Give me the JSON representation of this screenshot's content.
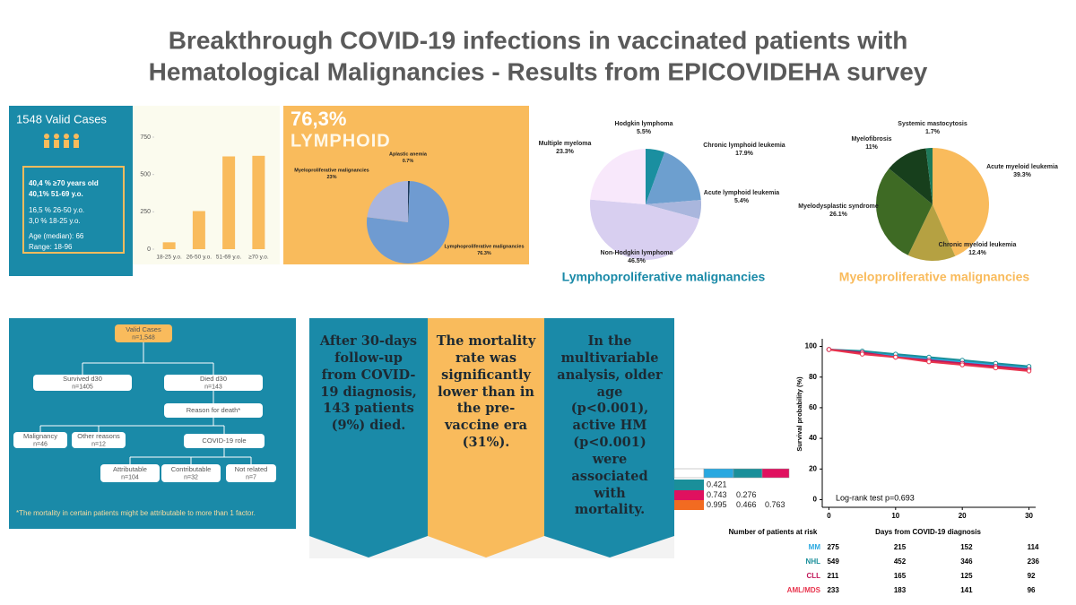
{
  "title": [
    "Breakthrough COVID-19 infections in vaccinated patients with",
    "Hematological Malignancies - Results from EPICOVIDEHA survey"
  ],
  "cases_panel": {
    "heading": "1548 Valid Cases",
    "lines": [
      "40,4 % ≥70 years old",
      "40,1% 51-69 y.o.",
      "16,5 % 26-50 y.o.",
      "3,0 % 18-25 y.o.",
      "Age (median): 66",
      "Range: 18-96"
    ]
  },
  "chart_data": [
    {
      "type": "bar",
      "categories": [
        "18-25 y.o.",
        "26-50 y.o.",
        "51-69 y.o.",
        "≥70 y.o."
      ],
      "values": [
        46,
        255,
        621,
        625
      ],
      "color": "#f9bb5c",
      "ylim": [
        0,
        750
      ],
      "yticks": [
        0,
        250,
        500,
        750
      ]
    },
    {
      "type": "pie",
      "title": "76,3%",
      "subtitle": "LYMPHOID",
      "categories": [
        "Aplastic anemia",
        "Lymphoproliferative malignancies",
        "Myeloproliferative malignancies"
      ],
      "values": [
        0.7,
        76.3,
        23
      ],
      "value_labels": [
        "0.7%",
        "76.3%",
        "23%"
      ],
      "colors": [
        "#1d3a5c",
        "#6f9bd1",
        "#aab5de"
      ]
    },
    {
      "type": "pie",
      "title": "Lymphoproliferative malignancies",
      "categories": [
        "Hodgkin lymphoma",
        "Chronic lymphoid leukemia",
        "Acute lymphoid leukemia",
        "Non-Hodgkin lymphoma",
        "Multiple myeloma"
      ],
      "values": [
        5.5,
        17.9,
        5.4,
        46.5,
        23.3
      ],
      "value_labels": [
        "5.5%",
        "17.9%",
        "5.4%",
        "46.5%",
        "23.3%"
      ],
      "colors": [
        "#1a8fa0",
        "#6d9fcf",
        "#a9b6dd",
        "#d8cff0",
        "#f8e8fb"
      ]
    },
    {
      "type": "pie",
      "title": "Myeloproliferative malignancies",
      "categories": [
        "Acute myeloid leukemia",
        "Chronic myeloid leukemia",
        "Myelodysplastic syndrome",
        "Myelofibrosis",
        "Systemic mastocytosis"
      ],
      "values": [
        39.3,
        12.4,
        26.1,
        11,
        1.7
      ],
      "value_labels": [
        "39.3%",
        "12.4%",
        "26.1%",
        "11%",
        "1.7%"
      ],
      "colors": [
        "#f9bb5c",
        "#b5a142",
        "#3e6a24",
        "#173f1c",
        "#1f7a5a"
      ]
    },
    {
      "type": "line",
      "annotation": "Log-rank test p=0.693",
      "x_label": "Days from COVID-19 diagnosis",
      "y_label": "Survival probability (%)",
      "x": [
        0,
        5,
        10,
        15,
        20,
        25,
        30
      ],
      "series": [
        {
          "name": "MM",
          "color": "#29a8e0",
          "values": [
            98,
            96,
            94,
            92,
            90,
            88,
            86
          ]
        },
        {
          "name": "NHL",
          "color": "#1a8f9a",
          "values": [
            98,
            97,
            95,
            93,
            91,
            89,
            87
          ]
        },
        {
          "name": "CLL",
          "color": "#c0185a",
          "values": [
            98,
            96,
            93,
            91,
            89,
            87,
            85
          ]
        },
        {
          "name": "AML/MDS",
          "color": "#e8344d",
          "values": [
            98,
            95,
            93,
            90,
            88,
            86,
            84
          ]
        }
      ],
      "xlim": [
        -1,
        31
      ],
      "xticks": [
        0,
        10,
        20,
        30
      ],
      "ylim": [
        -5,
        105
      ],
      "yticks": [
        0,
        20,
        40,
        60,
        80,
        100
      ]
    }
  ],
  "flowchart": {
    "nodes": [
      {
        "label": "Valid Cases",
        "count": "n=1,548"
      },
      {
        "label": "Survived d30",
        "count": "n=1405"
      },
      {
        "label": "Died d30",
        "count": "n=143"
      },
      {
        "label": "Reason for death*"
      },
      {
        "label": "Malignancy",
        "count": "n=46"
      },
      {
        "label": "Other reasons",
        "count": "n=12"
      },
      {
        "label": "COVID-19 role"
      },
      {
        "label": "Attributable",
        "count": "n=104"
      },
      {
        "label": "Contributable",
        "count": "n=32"
      },
      {
        "label": "Not related",
        "count": "n=7"
      }
    ],
    "footnote": "*The mortality in certain patients might be attributable to more than 1 factor."
  },
  "text_panels": [
    "After 30-days follow-up from COVID-19 diagnosis, 143 patients (9%) died.",
    "The mortality rate was significantly lower than in the pre-vaccine era (31%).",
    "In the multivariable analysis, older age (p<0.001), active HM (p<0.001) were associated with mortality."
  ],
  "pvalue_table": {
    "header_colors": [
      "#ffffff",
      "#29a8e0",
      "#1a8f9a",
      "#e0115f"
    ],
    "rows": [
      {
        "color": "#1a8f9a",
        "values": [
          0.421
        ]
      },
      {
        "color": "#e0115f",
        "values": [
          0.743,
          0.276
        ]
      },
      {
        "color": "#f26b21",
        "values": [
          0.995,
          0.466,
          0.763
        ]
      }
    ]
  },
  "risk_table": {
    "title": "Number of patients at risk",
    "values": [
      [
        275,
        215,
        152,
        114
      ],
      [
        549,
        452,
        346,
        236
      ],
      [
        211,
        165,
        125,
        92
      ],
      [
        233,
        183,
        141,
        96
      ]
    ]
  }
}
